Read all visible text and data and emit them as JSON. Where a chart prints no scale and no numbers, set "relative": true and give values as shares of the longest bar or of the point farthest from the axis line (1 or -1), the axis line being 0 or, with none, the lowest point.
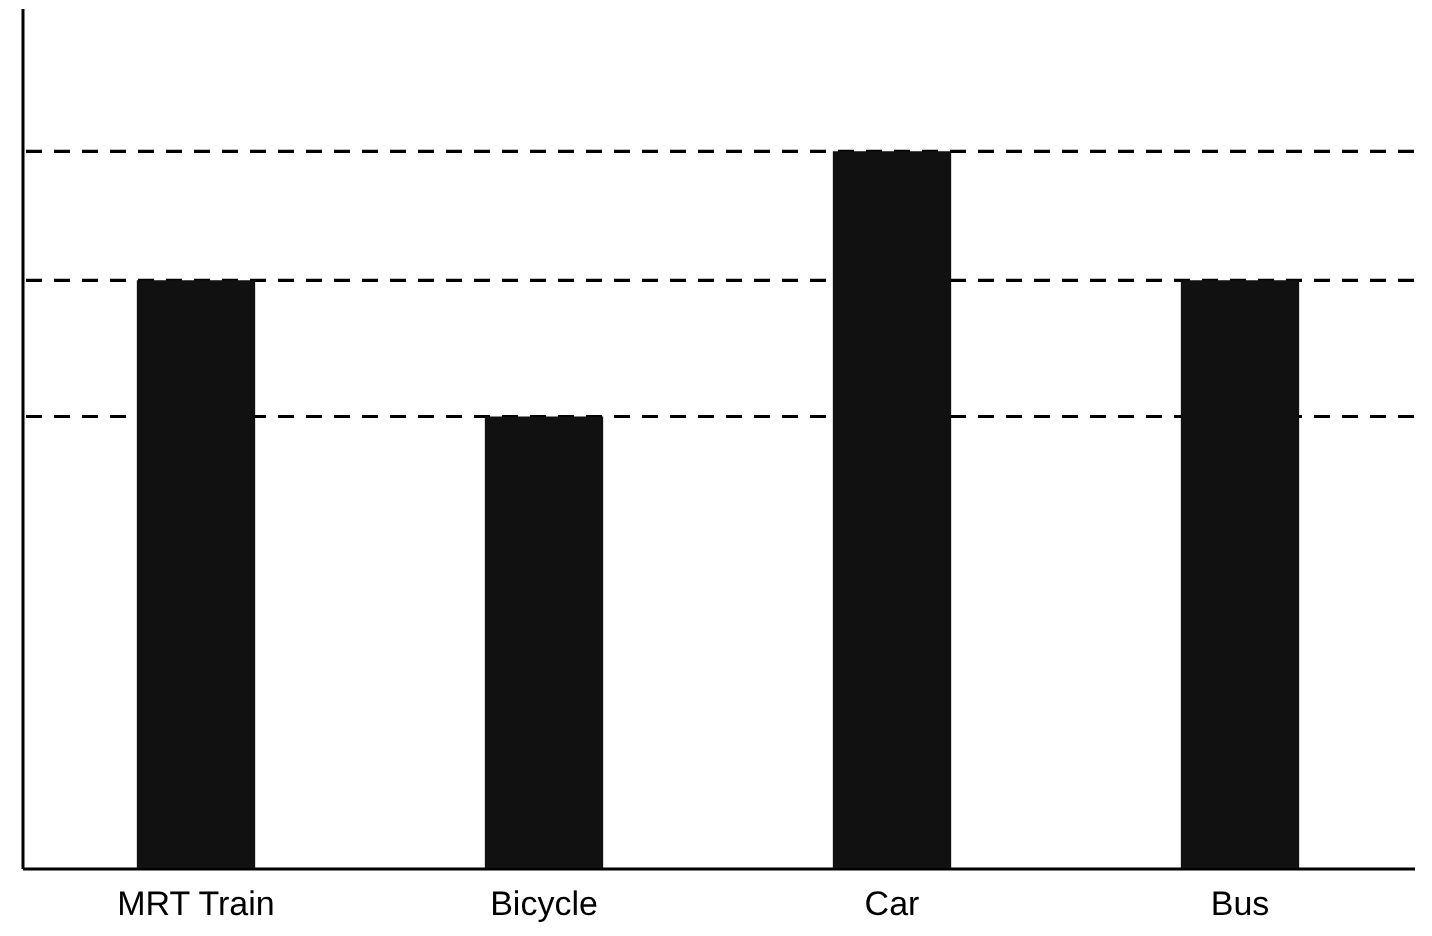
{
  "chart_data": {
    "type": "bar",
    "categories": [
      "MRT Train",
      "Bicycle",
      "Car",
      "Bus"
    ],
    "values": [
      0.82,
      0.63,
      1,
      0.82
    ],
    "color": "#111111",
    "relative": true,
    "grid": false,
    "ref_lines": [
      {
        "axis": "y",
        "value": 1,
        "line_style": "dashed"
      },
      {
        "axis": "y",
        "value": 0.82,
        "line_style": "dashed"
      },
      {
        "axis": "y",
        "value": 0.63,
        "line_style": "dashed"
      }
    ]
  }
}
